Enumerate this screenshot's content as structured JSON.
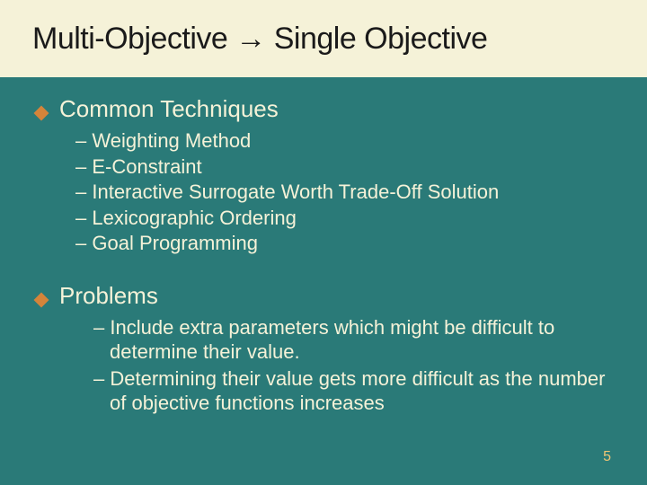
{
  "slide": {
    "title": "Multi-Objective → Single Objective",
    "background_color": "#2a7a78",
    "title_bar_color": "#f5f2d8",
    "title_text_color": "#1a1a1a",
    "body_text_color": "#f5f2d8",
    "bullet_color": "#d4843a",
    "page_num_color": "#f0c674",
    "title_fontsize": 34,
    "section_title_fontsize": 26,
    "subitem_fontsize": 22
  },
  "sections": [
    {
      "title": "Common Techniques",
      "items": [
        "Weighting Method",
        "E-Constraint",
        "Interactive Surrogate Worth Trade-Off Solution",
        "Lexicographic Ordering",
        "Goal Programming"
      ]
    },
    {
      "title": "Problems",
      "items": [
        "Include extra parameters which might be difficult to determine their value.",
        "Determining their value gets more difficult as the number of objective functions increases"
      ]
    }
  ],
  "page_number": "5"
}
